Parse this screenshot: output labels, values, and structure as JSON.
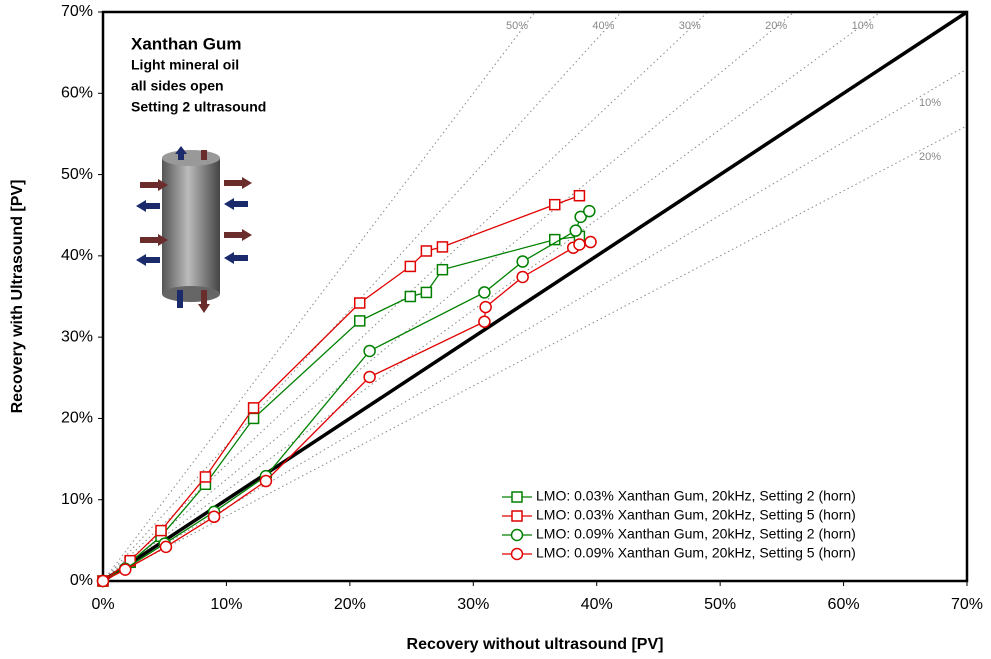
{
  "chart_data": {
    "type": "line",
    "x_label": "Recovery without ultrasound [PV]",
    "y_label": "Recovery with Ultrasound [PV]",
    "annotations": [
      "Xanthan Gum",
      "Light mineral oil",
      "all sides open",
      "Setting 2 ultrasound"
    ],
    "xlim": [
      0,
      70
    ],
    "ylim": [
      0,
      70
    ],
    "xticks": [
      {
        "value": 0,
        "label": "0%"
      },
      {
        "value": 10,
        "label": "10%"
      },
      {
        "value": 20,
        "label": "20%"
      },
      {
        "value": 30,
        "label": "30%"
      },
      {
        "value": 40,
        "label": "40%"
      },
      {
        "value": 50,
        "label": "50%"
      },
      {
        "value": 60,
        "label": "60%"
      },
      {
        "value": 70,
        "label": "70%"
      }
    ],
    "yticks": [
      {
        "value": 0,
        "label": "0%"
      },
      {
        "value": 10,
        "label": "10%"
      },
      {
        "value": 20,
        "label": "20%"
      },
      {
        "value": 30,
        "label": "30%"
      },
      {
        "value": 40,
        "label": "40%"
      },
      {
        "value": 50,
        "label": "50%"
      },
      {
        "value": 60,
        "label": "60%"
      },
      {
        "value": 70,
        "label": "70%"
      }
    ],
    "identity_line": true,
    "upper_reference_lines": [
      {
        "value": 50,
        "label": "50%"
      },
      {
        "value": 40,
        "label": "40%"
      },
      {
        "value": 30,
        "label": "30%"
      },
      {
        "value": 20,
        "label": "20%"
      },
      {
        "value": 10,
        "label": "10%"
      }
    ],
    "lower_reference_lines": [
      {
        "value": 10,
        "label": "10%"
      },
      {
        "value": 20,
        "label": "20%"
      }
    ],
    "legend": "lower right",
    "series": [
      {
        "name": "LMO: 0.03% Xanthan Gum, 20kHz, Setting 2 (horn)",
        "color": "#008000",
        "marker": "square",
        "x": [
          0,
          2.2,
          4.7,
          8.3,
          12.2,
          20.8,
          24.9,
          26.2,
          27.5,
          36.6,
          38.6
        ],
        "values": [
          0,
          2.3,
          5.5,
          11.9,
          20.0,
          32.0,
          35.0,
          35.5,
          38.3,
          42.0,
          42.4
        ]
      },
      {
        "name": "LMO: 0.03% Xanthan Gum, 20kHz, Setting 5 (horn)",
        "color": "#e00000",
        "marker": "square",
        "x": [
          0,
          2.2,
          4.7,
          8.3,
          12.2,
          20.8,
          24.9,
          26.2,
          27.5,
          36.6,
          38.6
        ],
        "values": [
          0,
          2.5,
          6.2,
          12.8,
          21.3,
          34.2,
          38.7,
          40.6,
          41.1,
          46.3,
          47.4
        ]
      },
      {
        "name": "LMO: 0.09% Xanthan Gum, 20kHz, Setting 2 (horn)",
        "color": "#008000",
        "marker": "circle",
        "x": [
          0,
          1.8,
          5.0,
          9.0,
          13.2,
          21.6,
          30.9,
          34.0,
          38.3,
          38.7,
          39.4
        ],
        "values": [
          0,
          1.5,
          4.6,
          8.5,
          12.9,
          28.3,
          35.5,
          39.3,
          43.1,
          44.8,
          45.5
        ]
      },
      {
        "name": "LMO: 0.09% Xanthan Gum, 20kHz, Setting 5 (horn)",
        "color": "#e00000",
        "marker": "circle",
        "x": [
          0,
          1.8,
          5.1,
          9.0,
          13.2,
          21.6,
          30.9,
          31.0,
          34.0,
          38.1,
          38.6,
          39.5
        ],
        "values": [
          0,
          1.4,
          4.2,
          7.9,
          12.3,
          25.1,
          31.9,
          33.7,
          37.4,
          41.0,
          41.4,
          41.7
        ]
      }
    ]
  }
}
